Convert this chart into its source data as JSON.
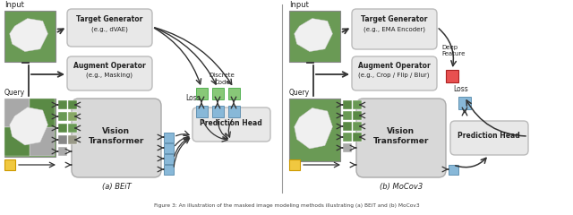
{
  "bg_color": "#ffffff",
  "box_fc": "#e8e8e8",
  "box_ec": "#bbbbbb",
  "vit_fc": "#d8d8d8",
  "vit_ec": "#aaaaaa",
  "green": "#88c878",
  "blue": "#88b8d8",
  "yellow": "#f0c840",
  "red": "#e85050",
  "tc": "#222222",
  "ac": "#333333",
  "left_caption": "(a) BEiT",
  "right_caption": "(b) MoCov3",
  "input_label": "Input",
  "query_label": "Query",
  "tg_left_line1": "Target Generator",
  "tg_left_line2": "(e.g., dVAE)",
  "ao_left_line1": "Augment Operator",
  "ao_left_line2": "(e.g., Masking)",
  "vit_label": "Vision\nTransformer",
  "ph_label": "Prediction Head",
  "discrete_label": "Discrete\nCode",
  "loss_label": "Loss",
  "tg_right_line1": "Target Generator",
  "tg_right_line2": "(e.g., EMA Encoder)",
  "ao_right_line1": "Augment Operator",
  "ao_right_line2": "(e.g., Crop / Flip / Blur)",
  "deep_feature_label": "Deep\nFeature",
  "img_green_dark": "#5a8a4a",
  "img_green_light": "#7aaa5a",
  "img_gray": "#b0b0b0",
  "img_patch_green": "#6a9a5a",
  "img_patch_gray": "#aaaaaa"
}
